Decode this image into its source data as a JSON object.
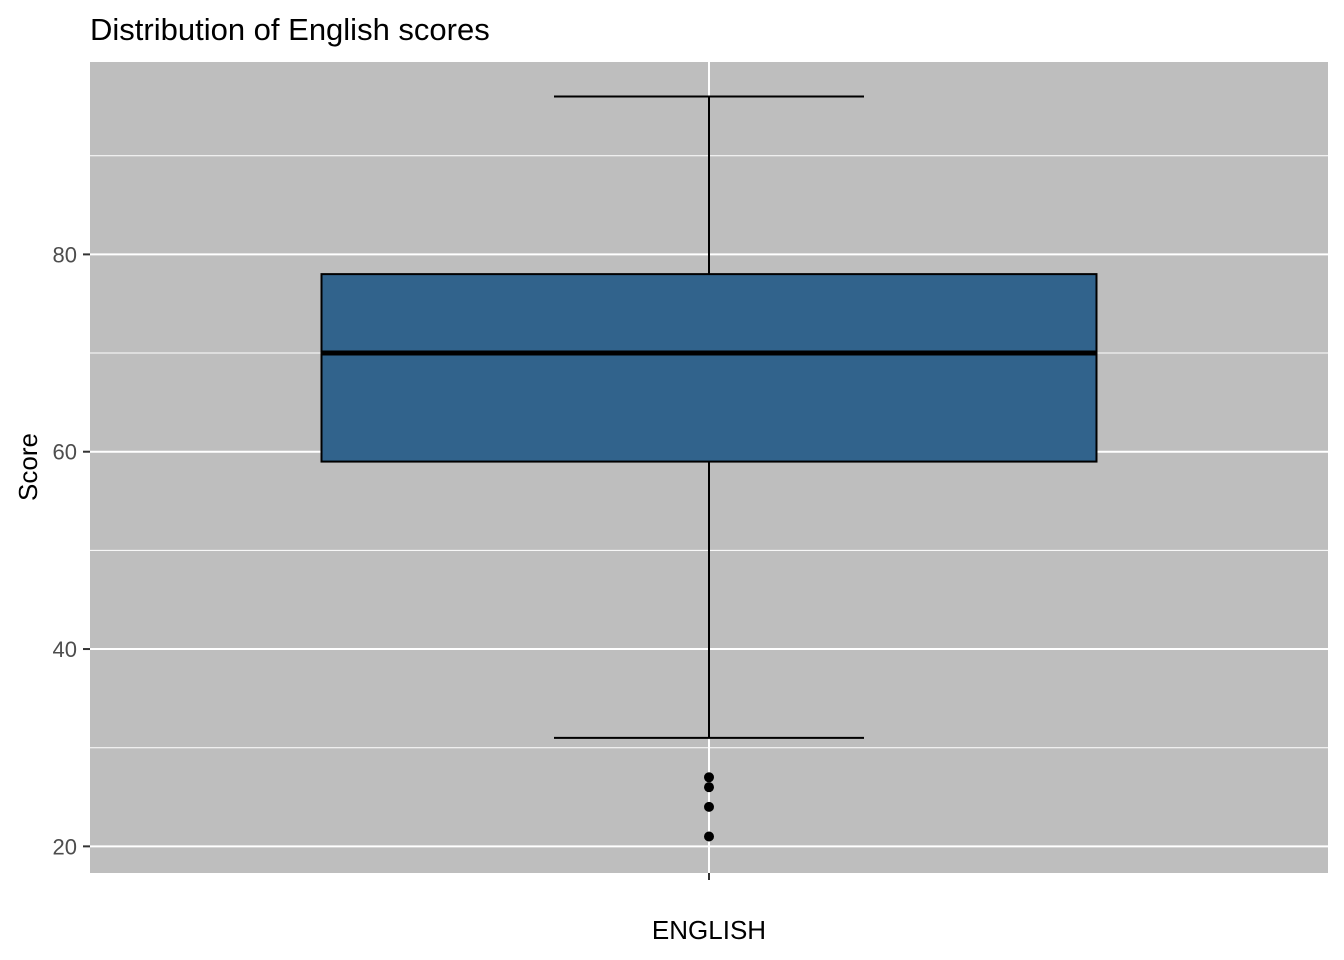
{
  "chart_data": {
    "type": "box",
    "title": "Distribution of English scores",
    "xlabel": "",
    "ylabel": "Score",
    "categories": [
      "ENGLISH"
    ],
    "ylim": [
      17.3,
      99.5
    ],
    "yticks": [
      20,
      40,
      60,
      80
    ],
    "grid": true,
    "legend": "none",
    "fill_color": "#31638c",
    "panel_color": "#bebebe",
    "boxes": [
      {
        "category": "ENGLISH",
        "whisker_low": 31,
        "q1": 59,
        "median": 70,
        "q3": 78,
        "whisker_high": 96,
        "outliers": [
          27,
          26,
          24,
          21
        ]
      }
    ]
  }
}
